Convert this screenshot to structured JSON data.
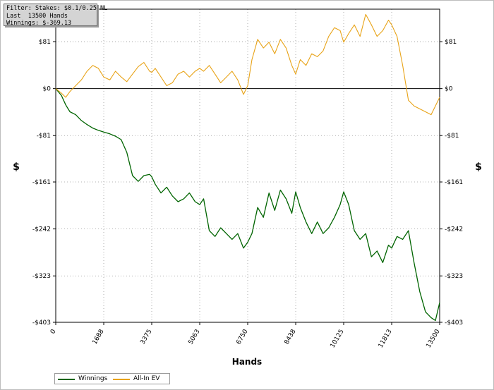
{
  "info_box": {
    "line1": "Filter: Stakes: $0.1/0.25 NL",
    "line2": "Last  13500 Hands",
    "line3": "Winnings: $-369.13"
  },
  "chart_data": {
    "type": "line",
    "xlabel": "Hands",
    "ylabel": "$",
    "xlim": [
      0,
      13500
    ],
    "ylim": [
      -403,
      137
    ],
    "x_ticks": [
      0,
      1688,
      3375,
      5063,
      6750,
      8438,
      10125,
      11813,
      13500
    ],
    "y_ticks": [
      81,
      0,
      -81,
      -161,
      -242,
      -323,
      -403
    ],
    "y_tick_labels": [
      "$81",
      "$0",
      "-$81",
      "-$161",
      "-$242",
      "-$323",
      "-$403"
    ],
    "grid": true,
    "legend_position": "bottom-left",
    "series": [
      {
        "name": "Winnings",
        "color": "#006400",
        "x": [
          0,
          200,
          350,
          500,
          700,
          900,
          1100,
          1300,
          1500,
          1688,
          1900,
          2100,
          2300,
          2500,
          2700,
          2900,
          3100,
          3300,
          3375,
          3500,
          3700,
          3900,
          4100,
          4300,
          4500,
          4700,
          4900,
          5063,
          5200,
          5400,
          5600,
          5800,
          6000,
          6200,
          6400,
          6600,
          6750,
          6900,
          7100,
          7300,
          7500,
          7700,
          7900,
          8100,
          8300,
          8438,
          8600,
          8800,
          9000,
          9200,
          9400,
          9600,
          9800,
          10000,
          10125,
          10300,
          10500,
          10700,
          10900,
          11100,
          11300,
          11500,
          11700,
          11813,
          12000,
          12200,
          12400,
          12600,
          12800,
          13000,
          13200,
          13350,
          13500
        ],
        "values": [
          0,
          -12,
          -28,
          -40,
          -45,
          -55,
          -62,
          -68,
          -72,
          -75,
          -78,
          -82,
          -88,
          -110,
          -150,
          -160,
          -150,
          -148,
          -152,
          -165,
          -180,
          -170,
          -185,
          -195,
          -190,
          -180,
          -195,
          -200,
          -190,
          -245,
          -255,
          -240,
          -250,
          -260,
          -250,
          -275,
          -265,
          -250,
          -205,
          -222,
          -180,
          -210,
          -175,
          -190,
          -215,
          -178,
          -205,
          -230,
          -250,
          -230,
          -250,
          -240,
          -222,
          -200,
          -178,
          -200,
          -245,
          -260,
          -250,
          -290,
          -280,
          -300,
          -270,
          -275,
          -255,
          -260,
          -245,
          -300,
          -350,
          -385,
          -395,
          -400,
          -369
        ]
      },
      {
        "name": "All-In EV",
        "color": "#e8a317",
        "x": [
          0,
          200,
          350,
          500,
          700,
          900,
          1100,
          1300,
          1500,
          1688,
          1900,
          2100,
          2300,
          2500,
          2700,
          2900,
          3100,
          3300,
          3375,
          3500,
          3700,
          3900,
          4100,
          4300,
          4500,
          4700,
          4900,
          5063,
          5200,
          5400,
          5600,
          5800,
          6000,
          6200,
          6400,
          6600,
          6750,
          6900,
          7100,
          7300,
          7500,
          7700,
          7900,
          8100,
          8300,
          8438,
          8600,
          8800,
          9000,
          9200,
          9400,
          9600,
          9800,
          10000,
          10125,
          10300,
          10500,
          10700,
          10900,
          11100,
          11300,
          11500,
          11700,
          11813,
          12000,
          12200,
          12400,
          12600,
          12800,
          13000,
          13200,
          13350,
          13500
        ],
        "values": [
          0,
          -8,
          -15,
          -5,
          5,
          15,
          30,
          40,
          35,
          20,
          15,
          30,
          20,
          12,
          25,
          38,
          45,
          30,
          28,
          35,
          20,
          5,
          10,
          25,
          30,
          20,
          30,
          35,
          30,
          40,
          25,
          10,
          20,
          30,
          15,
          -10,
          5,
          50,
          85,
          70,
          80,
          60,
          85,
          70,
          40,
          25,
          50,
          40,
          60,
          55,
          65,
          90,
          105,
          100,
          80,
          95,
          110,
          90,
          128,
          110,
          90,
          100,
          118,
          110,
          90,
          40,
          -20,
          -30,
          -35,
          -40,
          -45,
          -30,
          -15
        ]
      }
    ]
  },
  "legend": {
    "items": [
      {
        "label": "Winnings",
        "color": "#006400"
      },
      {
        "label": "All-In EV",
        "color": "#e8a317"
      }
    ]
  }
}
